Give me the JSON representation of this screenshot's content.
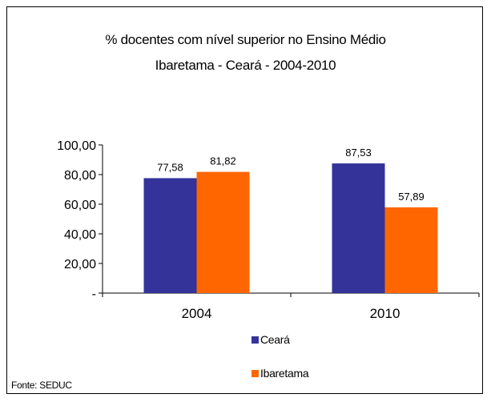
{
  "chart_data": {
    "type": "bar",
    "title": "% docentes com nível  superior no Ensino Médio",
    "subtitle": "Ibaretama  -  Ceará - 2004-2010",
    "categories": [
      "2004",
      "2010"
    ],
    "series": [
      {
        "name": "Ceará",
        "values": [
          77.58,
          87.53
        ],
        "labels": [
          "77,58",
          "87,53"
        ],
        "color": "#333399"
      },
      {
        "name": "Ibaretama",
        "values": [
          81.82,
          57.89
        ],
        "labels": [
          "81,82",
          "57,89"
        ],
        "color": "#FF6600"
      }
    ],
    "ylim": [
      0,
      100
    ],
    "yticks": [
      0,
      20,
      40,
      60,
      80,
      100
    ],
    "ytick_labels": [
      "-",
      "20,00",
      "40,00",
      "60,00",
      "80,00",
      "100,00"
    ],
    "xlabel": "",
    "ylabel": "",
    "grid": false,
    "legend_position": "bottom"
  },
  "source": "Fonte: SEDUC"
}
